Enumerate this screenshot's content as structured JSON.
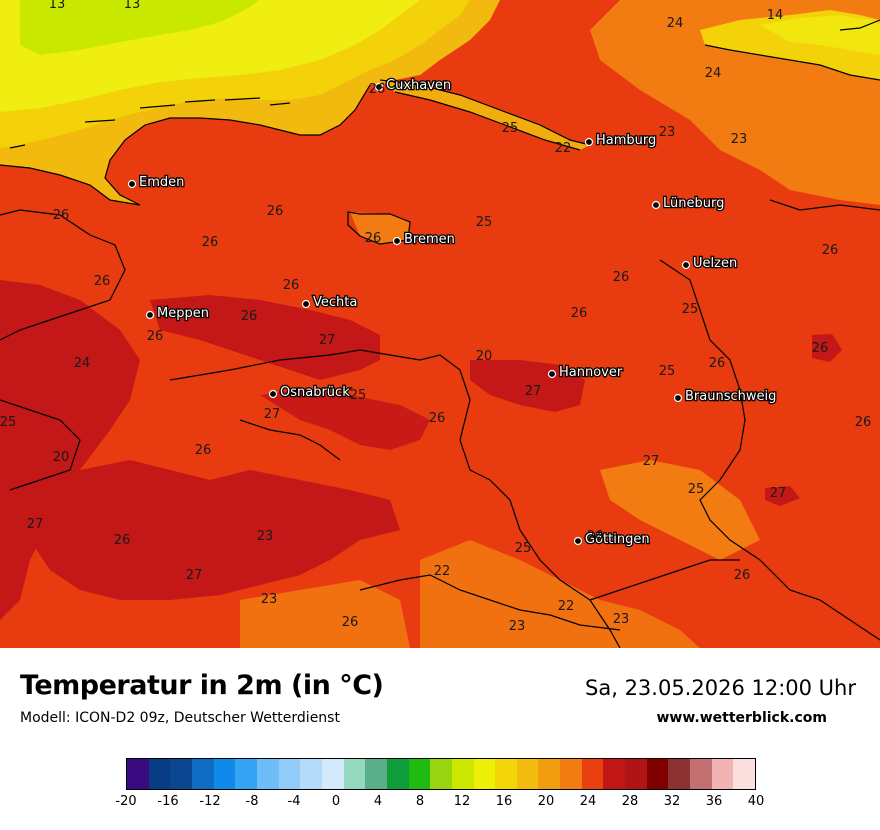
{
  "map": {
    "region": "Nordwestdeutschland",
    "colors": {
      "t12_14": "#c8e800",
      "t16_18": "#f0ee10",
      "t18_20": "#f4d20a",
      "t20_22": "#f2b90e",
      "t22_24": "#f27b12",
      "t24_26": "#e83b0f",
      "t26_28": "#c41717",
      "border": "#000000"
    },
    "cities": [
      {
        "name": "Cuxhaven"
      },
      {
        "name": "Hamburg"
      },
      {
        "name": "Emden"
      },
      {
        "name": "Lüneburg"
      },
      {
        "name": "Bremen"
      },
      {
        "name": "Uelzen"
      },
      {
        "name": "Meppen"
      },
      {
        "name": "Vechta"
      },
      {
        "name": "Hannover"
      },
      {
        "name": "Osnabrück"
      },
      {
        "name": "Braunschweig"
      },
      {
        "name": "Göttingen"
      }
    ],
    "values": [
      "13",
      "13",
      "24",
      "14",
      "24",
      "26",
      "25",
      "23",
      "23",
      "22",
      "26",
      "26",
      "26",
      "25",
      "26",
      "26",
      "26",
      "26",
      "26",
      "25",
      "26",
      "26",
      "26",
      "27",
      "20",
      "27",
      "25",
      "26",
      "26",
      "24",
      "25",
      "27",
      "25",
      "26",
      "26",
      "26",
      "20",
      "27",
      "25",
      "27",
      "27",
      "23",
      "26",
      "26",
      "25",
      "22",
      "26",
      "27",
      "23",
      "22",
      "26",
      "23",
      "23"
    ]
  },
  "footer": {
    "title": "Temperatur in 2m (in °C)",
    "subtitle": "Modell: ICON-D2 09z, Deutscher Wetterdienst",
    "datetime": "Sa, 23.05.2026 12:00 Uhr",
    "website": "www.wetterblick.com"
  },
  "legend": {
    "colors": [
      "#3a0a80",
      "#083c84",
      "#0a4790",
      "#0f6cc4",
      "#0f8ae8",
      "#35a4f4",
      "#6ebcf8",
      "#93cbf8",
      "#b5dbfa",
      "#d4e9fc",
      "#94d8bd",
      "#5aae8a",
      "#0f9c3a",
      "#1ebb10",
      "#99d510",
      "#cde800",
      "#eef008",
      "#f2d60a",
      "#f2bc0e",
      "#f29c10",
      "#f07c12",
      "#e8400e",
      "#c01616",
      "#b01414",
      "#800000",
      "#8c3232",
      "#c27070",
      "#f0b4b4",
      "#fce0e0"
    ],
    "ticks": [
      "-20",
      "-16",
      "-12",
      "-8",
      "-4",
      "0",
      "4",
      "8",
      "12",
      "16",
      "20",
      "24",
      "28",
      "32",
      "36",
      "40"
    ]
  }
}
